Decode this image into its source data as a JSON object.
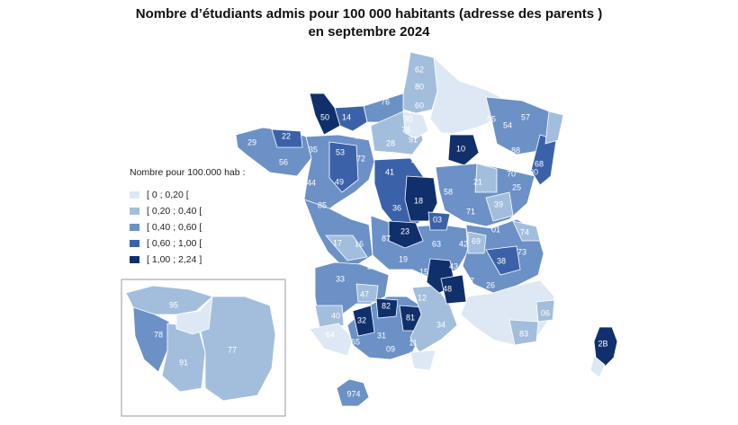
{
  "title": {
    "line1": "Nombre d’étudiants admis pour 100 000 habitants (adresse des parents )",
    "line2": "en septembre 2024"
  },
  "legend": {
    "title": "Nombre pour 100.000 hab :",
    "classes": [
      {
        "label": "[ 0 ; 0,20 [",
        "color": "#dde8f4"
      },
      {
        "label": "[ 0,20 ; 0,40 [",
        "color": "#a3bedd"
      },
      {
        "label": "[ 0,40 ; 0,60 [",
        "color": "#6b91c6"
      },
      {
        "label": "[ 0,60 ; 1,00 [",
        "color": "#3b62a8"
      },
      {
        "label": "[ 1,00 ; 2,24 ]",
        "color": "#10306c"
      }
    ]
  },
  "departments": [
    {
      "code": "62",
      "cls": 1
    },
    {
      "code": "80",
      "cls": 1
    },
    {
      "code": "60",
      "cls": 1
    },
    {
      "code": "76",
      "cls": 2
    },
    {
      "code": "50",
      "cls": 4
    },
    {
      "code": "14",
      "cls": 3
    },
    {
      "code": "61",
      "cls": 1
    },
    {
      "code": "29",
      "cls": 2
    },
    {
      "code": "22",
      "cls": 3
    },
    {
      "code": "56",
      "cls": 2
    },
    {
      "code": "35",
      "cls": 2
    },
    {
      "code": "53",
      "cls": 3
    },
    {
      "code": "72",
      "cls": 2
    },
    {
      "code": "44",
      "cls": 2
    },
    {
      "code": "49",
      "cls": 3
    },
    {
      "code": "85",
      "cls": 2
    },
    {
      "code": "79",
      "cls": 2
    },
    {
      "code": "86",
      "cls": 3
    },
    {
      "code": "17",
      "cls": 1
    },
    {
      "code": "16",
      "cls": 1
    },
    {
      "code": "87",
      "cls": 3
    },
    {
      "code": "24",
      "cls": 2
    },
    {
      "code": "33",
      "cls": 2
    },
    {
      "code": "47",
      "cls": 1
    },
    {
      "code": "40",
      "cls": 1
    },
    {
      "code": "64",
      "cls": 0
    },
    {
      "code": "65",
      "cls": 2
    },
    {
      "code": "32",
      "cls": 4
    },
    {
      "code": "31",
      "cls": 2
    },
    {
      "code": "09",
      "cls": 2
    },
    {
      "code": "82",
      "cls": 4
    },
    {
      "code": "81",
      "cls": 4
    },
    {
      "code": "11",
      "cls": 1
    },
    {
      "code": "34",
      "cls": 1
    },
    {
      "code": "12",
      "cls": 1
    },
    {
      "code": "46",
      "cls": 2
    },
    {
      "code": "19",
      "cls": 2
    },
    {
      "code": "15",
      "cls": 4
    },
    {
      "code": "48",
      "cls": 4
    },
    {
      "code": "43",
      "cls": 2
    },
    {
      "code": "07",
      "cls": 2
    },
    {
      "code": "26",
      "cls": 2
    },
    {
      "code": "63",
      "cls": 2
    },
    {
      "code": "23",
      "cls": 4
    },
    {
      "code": "03",
      "cls": 3
    },
    {
      "code": "42",
      "cls": 2
    },
    {
      "code": "69",
      "cls": 1
    },
    {
      "code": "38",
      "cls": 3
    },
    {
      "code": "73",
      "cls": 2
    },
    {
      "code": "74",
      "cls": 1
    },
    {
      "code": "01",
      "cls": 2
    },
    {
      "code": "71",
      "cls": 2
    },
    {
      "code": "39",
      "cls": 1
    },
    {
      "code": "58",
      "cls": 2
    },
    {
      "code": "18",
      "cls": 4
    },
    {
      "code": "36",
      "cls": 3
    },
    {
      "code": "41",
      "cls": 3
    },
    {
      "code": "45",
      "cls": 2
    },
    {
      "code": "28",
      "cls": 1
    },
    {
      "code": "78",
      "cls": 2
    },
    {
      "code": "95",
      "cls": 1
    },
    {
      "code": "91",
      "cls": 1
    },
    {
      "code": "77",
      "cls": 1
    },
    {
      "code": "10",
      "cls": 4
    },
    {
      "code": "21",
      "cls": 1
    },
    {
      "code": "70",
      "cls": 2
    },
    {
      "code": "25",
      "cls": 2
    },
    {
      "code": "90",
      "cls": 3
    },
    {
      "code": "68",
      "cls": 4
    },
    {
      "code": "88",
      "cls": 2
    },
    {
      "code": "54",
      "cls": 2
    },
    {
      "code": "57",
      "cls": 3
    },
    {
      "code": "55",
      "cls": 2
    },
    {
      "code": "83",
      "cls": 1
    },
    {
      "code": "06",
      "cls": 1
    },
    {
      "code": "2B",
      "cls": 4
    },
    {
      "code": "974",
      "cls": 2
    }
  ],
  "inset": {
    "departments": [
      {
        "code": "95",
        "cls": 1
      },
      {
        "code": "78",
        "cls": 2
      },
      {
        "code": "91",
        "cls": 1
      },
      {
        "code": "77",
        "cls": 1
      }
    ]
  }
}
